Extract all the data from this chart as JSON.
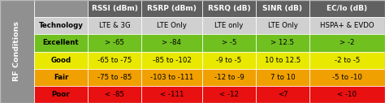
{
  "header_row": [
    "",
    "RSSI (dBm)",
    "RSRP (dBm)",
    "RSRQ (dB)",
    "SINR (dB)",
    "EC/Io (dB)"
  ],
  "rows": [
    [
      "Technology",
      "LTE & 3G",
      "LTE Only",
      "LTE only",
      "LTE Only",
      "HSPA+ & EVDO"
    ],
    [
      "Excellent",
      "> -65",
      "> -84",
      "> -5",
      "> 12.5",
      "> -2"
    ],
    [
      "Good",
      "-65 to -75",
      "-85 to -102",
      "-9 to -5",
      "10 to 12.5",
      "-2 to -5"
    ],
    [
      "Fair",
      "-75 to -85",
      "-103 to -111",
      "-12 to -9",
      "7 to 10",
      "-5 to -10"
    ],
    [
      "Poor",
      "< -85",
      "< -111",
      "< -12",
      "<7",
      "< -10"
    ]
  ],
  "row_colors": [
    "#d0d0d0",
    "#70c020",
    "#e8e800",
    "#f0a000",
    "#e81010"
  ],
  "header_bg": "#606060",
  "header_fg": "#ffffff",
  "label_bg": "#909090",
  "label_fg": "#ffffff",
  "label_text": "RF Conditions",
  "figsize": [
    4.74,
    1.27
  ],
  "dpi": 100,
  "text_fontsize": 6.2,
  "header_fontsize": 6.5
}
